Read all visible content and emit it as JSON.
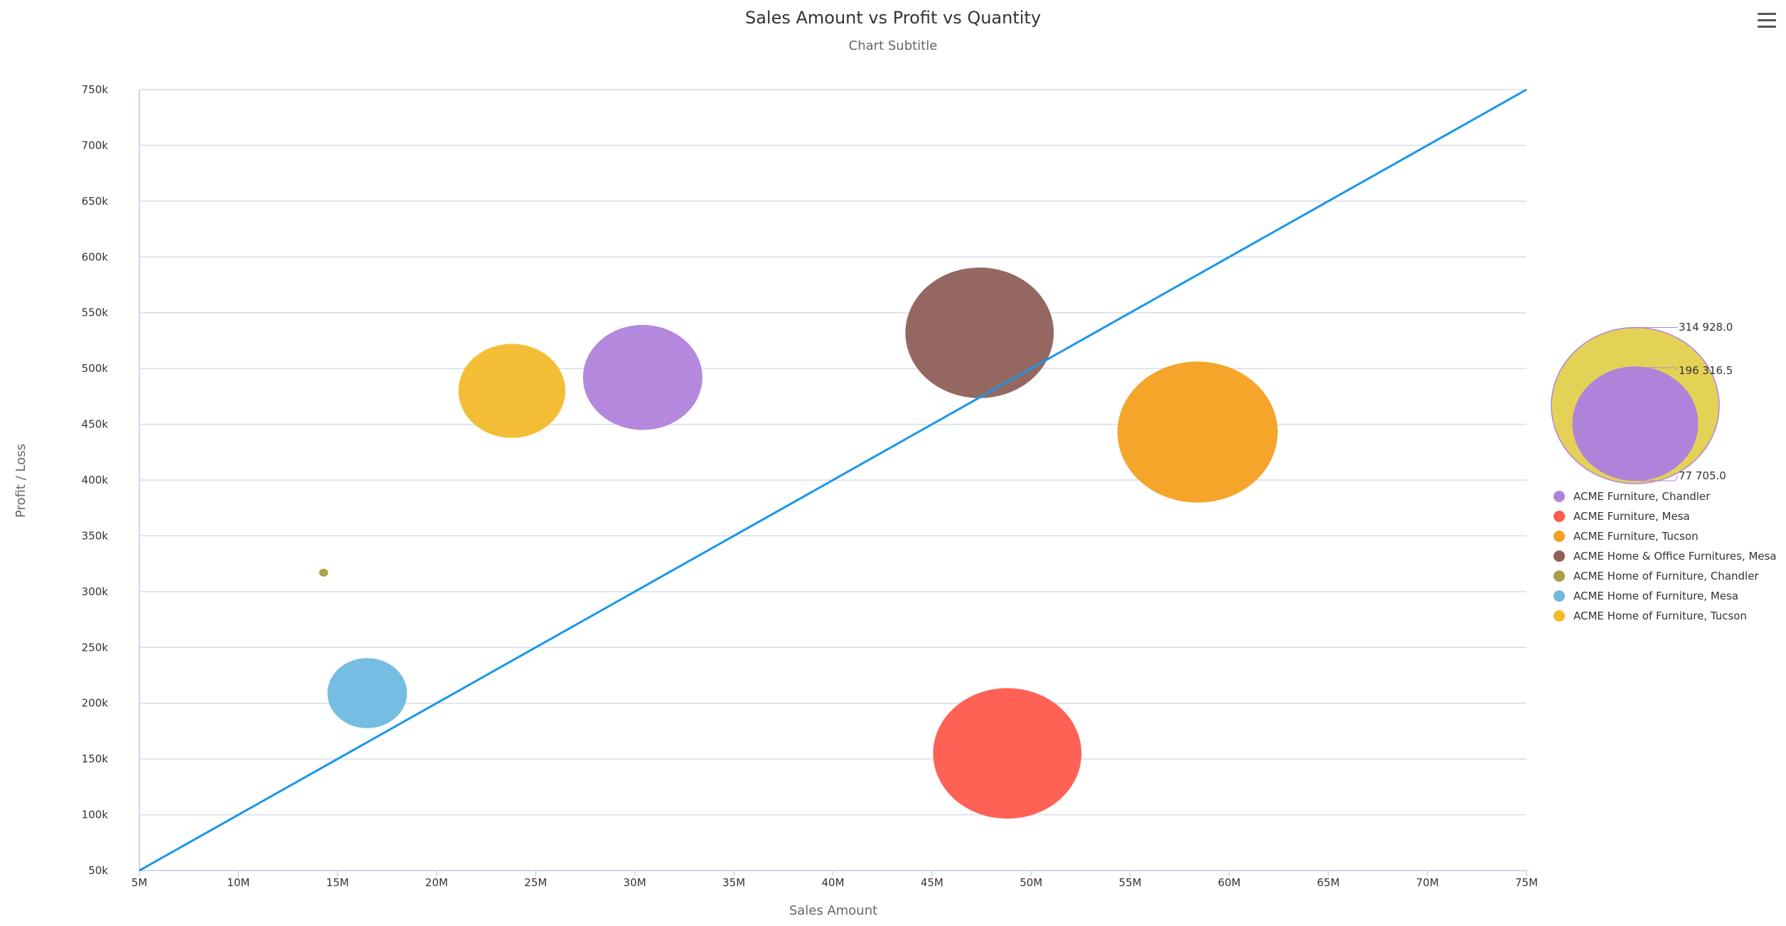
{
  "chart_data": {
    "type": "scatter",
    "subtype": "bubble",
    "title": "Sales Amount vs Profit vs Quantity",
    "subtitle": "Chart Subtitle",
    "xlabel": "Sales Amount",
    "ylabel": "Profit / Loss",
    "xlim": [
      5000000,
      75000000
    ],
    "ylim": [
      50000,
      750000
    ],
    "x_ticks": [
      "5M",
      "10M",
      "15M",
      "20M",
      "25M",
      "30M",
      "35M",
      "40M",
      "45M",
      "50M",
      "55M",
      "60M",
      "65M",
      "70M",
      "75M"
    ],
    "x_tick_values": [
      5000000,
      10000000,
      15000000,
      20000000,
      25000000,
      30000000,
      35000000,
      40000000,
      45000000,
      50000000,
      55000000,
      60000000,
      65000000,
      70000000,
      75000000
    ],
    "y_ticks": [
      "50k",
      "100k",
      "150k",
      "200k",
      "250k",
      "300k",
      "350k",
      "400k",
      "450k",
      "500k",
      "550k",
      "600k",
      "650k",
      "700k",
      "750k"
    ],
    "y_tick_values": [
      50000,
      100000,
      150000,
      200000,
      250000,
      300000,
      350000,
      400000,
      450000,
      500000,
      550000,
      600000,
      650000,
      700000,
      750000
    ],
    "grid": true,
    "legend_position": "right",
    "series": [
      {
        "name": "ACME Furniture, Chandler",
        "color": "#b083db",
        "x": 30400000,
        "y": 492000,
        "z": 175000
      },
      {
        "name": "ACME Furniture, Mesa",
        "color": "#ff5a4b",
        "x": 48800000,
        "y": 155000,
        "z": 270000
      },
      {
        "name": "ACME Furniture, Tucson",
        "color": "#f3a01f",
        "x": 58400000,
        "y": 443000,
        "z": 314928
      },
      {
        "name": "ACME Home & Office Furnitures, Mesa",
        "color": "#8e6057",
        "x": 47400000,
        "y": 532000,
        "z": 270000
      },
      {
        "name": "ACME Home of Furniture, Chandler",
        "color": "#a8a044",
        "x": 14300000,
        "y": 317000,
        "z": 1000
      },
      {
        "name": "ACME Home of Furniture, Mesa",
        "color": "#6eb9e0",
        "x": 16500000,
        "y": 209000,
        "z": 77705
      },
      {
        "name": "ACME Home of Furniture, Tucson",
        "color": "#f2bb2a",
        "x": 23800000,
        "y": 480000,
        "z": 140000
      }
    ],
    "trend_line": {
      "color": "#1a96e8",
      "from": [
        5000000,
        50000
      ],
      "to": [
        75000000,
        750000
      ]
    },
    "bubble_size_legend": {
      "labels": [
        "314 928.0",
        "196 316.5",
        "77 705.0"
      ],
      "values": [
        314928.0,
        196316.5,
        77705.0
      ],
      "outer_color": "#e3d04d",
      "inner_color": "#b083db"
    }
  }
}
